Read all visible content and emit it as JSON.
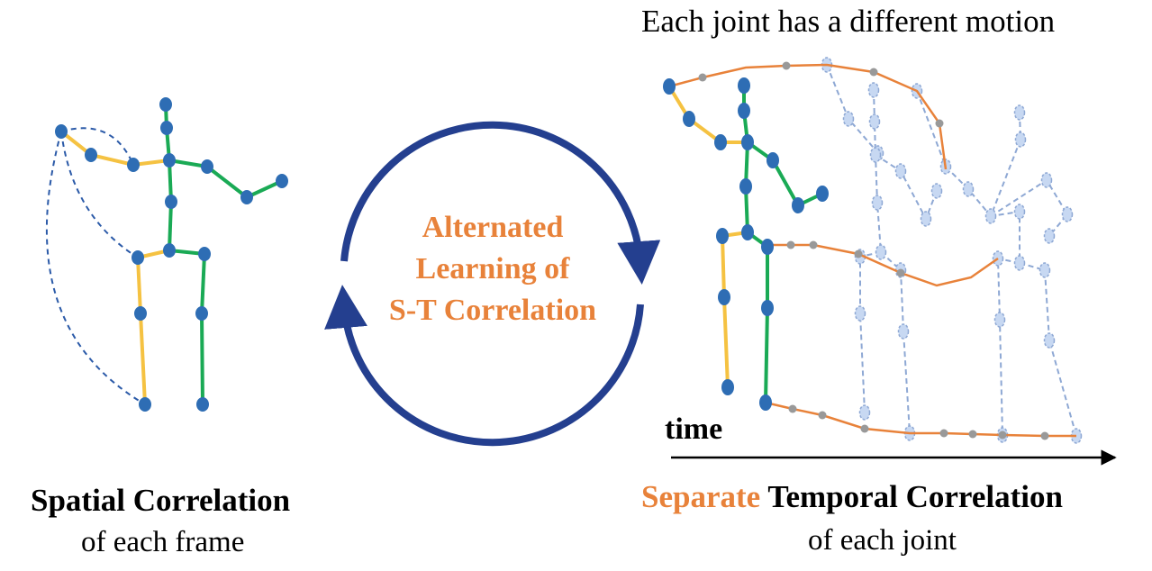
{
  "header": {
    "motion_caption": "Each joint has a different motion"
  },
  "center": {
    "lines": [
      "Alternated",
      "Learning of",
      "S-T Correlation"
    ]
  },
  "left_caption": {
    "bold": "Spatial Correlation",
    "sub": "of each frame"
  },
  "right_caption": {
    "highlight": "Separate",
    "bold": "Temporal Correlation",
    "sub": "of each joint"
  },
  "time_axis": {
    "label": "time"
  },
  "colors": {
    "joint": "#2e6db4",
    "bone_yellow": "#f5c242",
    "bone_green": "#1aaa55",
    "trajectory": "#e8823a",
    "dashed_link": "#2b5aa8",
    "cycle_arrow": "#243f8f",
    "ghost_fill": "#c7d8f2",
    "ghost_stroke": "#8ea8d4",
    "highlight_text": "#e8823a",
    "center_text": "#e8823a"
  }
}
